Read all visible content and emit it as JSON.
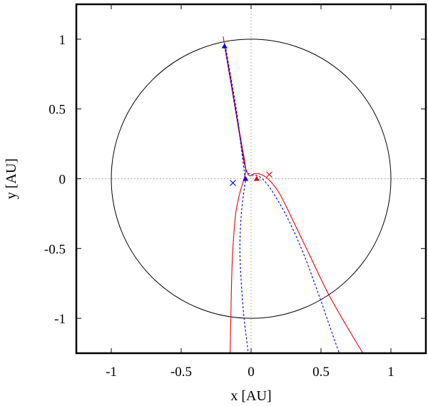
{
  "chart_data": {
    "type": "line",
    "title": "",
    "xlabel": "x [AU]",
    "ylabel": "y [AU]",
    "xlim": [
      -1.25,
      1.25
    ],
    "ylim": [
      -1.25,
      1.25
    ],
    "xticks": [
      -1,
      -0.5,
      0,
      0.5,
      1
    ],
    "xtick_labels": [
      "-1",
      "-0.5",
      "0",
      "0.5",
      "1"
    ],
    "yticks": [
      -1,
      -0.5,
      0,
      0.5,
      1
    ],
    "ytick_labels": [
      "-1",
      "-0.5",
      "0",
      "0.5",
      "1"
    ],
    "grid": false,
    "zero_lines": "dotted",
    "circle": {
      "center": [
        0,
        0
      ],
      "radius": 1,
      "color": "#000000"
    },
    "series": [
      {
        "color": "#e8000b",
        "style": "solid",
        "x": [
          -0.2,
          -0.16,
          -0.12,
          -0.08,
          -0.05,
          -0.03,
          -0.01,
          0.02,
          0.06,
          0.12,
          0.2,
          0.3,
          0.42,
          0.55,
          0.68,
          0.8
        ],
        "y": [
          1.02,
          0.78,
          0.54,
          0.3,
          0.12,
          0.05,
          0.02,
          0.035,
          0.035,
          0.0,
          -0.1,
          -0.3,
          -0.55,
          -0.82,
          -1.05,
          -1.25
        ]
      },
      {
        "color": "#e8000b",
        "style": "solid",
        "x": [
          -0.19,
          -0.15,
          -0.11,
          -0.07,
          -0.04,
          -0.05,
          -0.08,
          -0.11,
          -0.13,
          -0.14,
          -0.145,
          -0.15
        ],
        "y": [
          0.97,
          0.74,
          0.5,
          0.26,
          0.08,
          0.0,
          -0.1,
          -0.25,
          -0.5,
          -0.75,
          -1.0,
          -1.25
        ]
      },
      {
        "color": "#0000e6",
        "style": "dashed",
        "x": [
          -0.19,
          -0.15,
          -0.11,
          -0.07,
          -0.04,
          0.0,
          0.05,
          0.1,
          0.17,
          0.27,
          0.38,
          0.48,
          0.56,
          0.63
        ],
        "y": [
          0.95,
          0.72,
          0.48,
          0.25,
          0.07,
          0.03,
          0.02,
          -0.02,
          -0.12,
          -0.3,
          -0.55,
          -0.82,
          -1.05,
          -1.25
        ]
      },
      {
        "color": "#0000e6",
        "style": "dashed",
        "x": [
          -0.18,
          -0.14,
          -0.1,
          -0.07,
          -0.05,
          -0.04,
          -0.05,
          -0.07,
          -0.08,
          -0.07,
          -0.05,
          -0.02
        ],
        "y": [
          0.93,
          0.7,
          0.46,
          0.22,
          0.06,
          -0.01,
          -0.08,
          -0.25,
          -0.5,
          -0.75,
          -1.0,
          -1.25
        ]
      }
    ],
    "markers": [
      {
        "shape": "cross",
        "color": "#0000e6",
        "x": -0.13,
        "y": -0.03
      },
      {
        "shape": "triangle",
        "color": "#0000e6",
        "x": -0.04,
        "y": 0.0
      },
      {
        "shape": "triangle",
        "color": "#e8000b",
        "x": 0.04,
        "y": 0.0
      },
      {
        "shape": "cross",
        "color": "#e8000b",
        "x": 0.13,
        "y": 0.03
      },
      {
        "shape": "triangle",
        "color": "#0000e6",
        "x": -0.19,
        "y": 0.95
      }
    ]
  }
}
